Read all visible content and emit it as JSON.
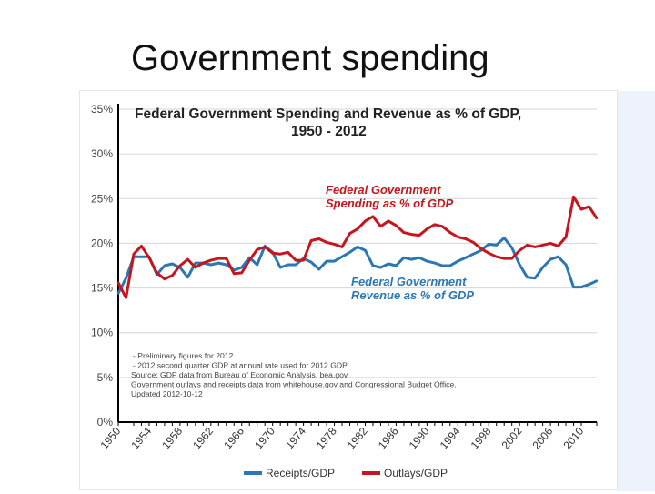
{
  "slide": {
    "title": "Government spending"
  },
  "chart_data": {
    "type": "line",
    "title": "Federal Government Spending and Revenue as % of GDP,",
    "title_line2": "1950 - 2012",
    "ylim": [
      0,
      35
    ],
    "y_ticks": [
      0,
      5,
      10,
      15,
      20,
      25,
      30,
      35
    ],
    "y_tick_labels": [
      "0%",
      "5%",
      "10%",
      "15%",
      "20%",
      "25%",
      "30%",
      "35%"
    ],
    "xlim": [
      1950,
      2012
    ],
    "x_ticks": [
      1950,
      1954,
      1958,
      1962,
      1966,
      1970,
      1974,
      1978,
      1982,
      1986,
      1990,
      1994,
      1998,
      2002,
      2006,
      2010
    ],
    "x_tick_labels": [
      "1950",
      "1954",
      "1958",
      "1962",
      "1966",
      "1970",
      "1974",
      "1978",
      "1982",
      "1986",
      "1990",
      "1994",
      "1998",
      "2002",
      "2006",
      "2010"
    ],
    "grid": "horizontal",
    "legend_placement": "bottom",
    "series": [
      {
        "name": "Receipts/GDP",
        "color": "#2a77b4",
        "x": [
          1950,
          1951,
          1952,
          1953,
          1954,
          1955,
          1956,
          1957,
          1958,
          1959,
          1960,
          1961,
          1962,
          1963,
          1964,
          1965,
          1966,
          1967,
          1968,
          1969,
          1970,
          1971,
          1972,
          1973,
          1974,
          1975,
          1976,
          1977,
          1978,
          1979,
          1980,
          1981,
          1982,
          1983,
          1984,
          1985,
          1986,
          1987,
          1988,
          1989,
          1990,
          1991,
          1992,
          1993,
          1994,
          1995,
          1996,
          1997,
          1998,
          1999,
          2000,
          2001,
          2002,
          2003,
          2004,
          2005,
          2006,
          2007,
          2008,
          2009,
          2010,
          2011,
          2012
        ],
        "y": [
          14.4,
          16.1,
          18.5,
          18.5,
          18.5,
          16.5,
          17.5,
          17.7,
          17.3,
          16.2,
          17.8,
          17.8,
          17.6,
          17.8,
          17.6,
          17.0,
          17.3,
          18.4,
          17.6,
          19.7,
          19.0,
          17.3,
          17.6,
          17.6,
          18.3,
          17.9,
          17.1,
          18.0,
          18.0,
          18.5,
          19.0,
          19.6,
          19.2,
          17.5,
          17.3,
          17.7,
          17.5,
          18.4,
          18.2,
          18.4,
          18.0,
          17.8,
          17.5,
          17.5,
          18.0,
          18.4,
          18.8,
          19.2,
          19.9,
          19.8,
          20.6,
          19.5,
          17.6,
          16.2,
          16.1,
          17.3,
          18.2,
          18.5,
          17.6,
          15.1,
          15.1,
          15.4,
          15.8
        ]
      },
      {
        "name": "Outlays/GDP",
        "color": "#c4161c",
        "x": [
          1950,
          1951,
          1952,
          1953,
          1954,
          1955,
          1956,
          1957,
          1958,
          1959,
          1960,
          1961,
          1962,
          1963,
          1964,
          1965,
          1966,
          1967,
          1968,
          1969,
          1970,
          1971,
          1972,
          1973,
          1974,
          1975,
          1976,
          1977,
          1978,
          1979,
          1980,
          1981,
          1982,
          1983,
          1984,
          1985,
          1986,
          1987,
          1988,
          1989,
          1990,
          1991,
          1992,
          1993,
          1994,
          1995,
          1996,
          1997,
          1998,
          1999,
          2000,
          2001,
          2002,
          2003,
          2004,
          2005,
          2006,
          2007,
          2008,
          2009,
          2010,
          2011,
          2012
        ],
        "y": [
          15.6,
          13.9,
          18.8,
          19.7,
          18.4,
          16.7,
          16.0,
          16.4,
          17.5,
          18.2,
          17.3,
          17.8,
          18.1,
          18.3,
          18.3,
          16.6,
          16.7,
          18.1,
          19.3,
          19.6,
          18.9,
          18.8,
          19.0,
          18.1,
          18.1,
          20.3,
          20.5,
          20.1,
          19.9,
          19.6,
          21.1,
          21.6,
          22.5,
          23.0,
          21.9,
          22.5,
          22.0,
          21.2,
          21.0,
          20.9,
          21.6,
          22.1,
          21.9,
          21.2,
          20.7,
          20.5,
          20.1,
          19.4,
          18.9,
          18.5,
          18.3,
          18.3,
          19.2,
          19.8,
          19.6,
          19.8,
          20.0,
          19.7,
          20.7,
          25.2,
          23.8,
          24.1,
          22.8
        ]
      }
    ],
    "annotations": [
      {
        "id": "spending",
        "color": "#c4161c",
        "lines": [
          "Federal Government",
          "Spending as % of GDP"
        ]
      },
      {
        "id": "revenue",
        "color": "#2a77b4",
        "lines": [
          "Federal Government",
          "Revenue as % of GDP"
        ]
      }
    ],
    "notes": [
      "- Preliminary figures for 2012",
      "- 2012 second quarter GDP at annual rate used for 2012 GDP",
      "Source: GDP data from Bureau of Economic Analysis, bea.gov",
      "Government outlays and receipts data from whitehouse.gov and Congressional Budget Office.",
      "Updated 2012-10-12"
    ]
  }
}
